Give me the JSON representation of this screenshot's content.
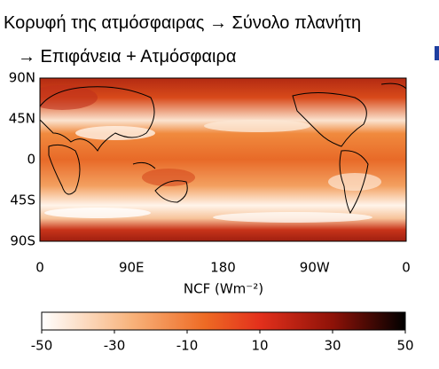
{
  "title": [
    "Κορυφή της ατμόσφαιρας → Σύνολο πλανήτη",
    "→  Επιφάνεια + Ατμόσφαιρα"
  ],
  "map": {
    "lat_labels": [
      "90N",
      "45N",
      "0",
      "45S",
      "90S"
    ],
    "lon_labels": [
      "0",
      "90E",
      "180",
      "90W",
      "0"
    ],
    "axis_label": "NCF (Wm⁻²)"
  },
  "colorbar": {
    "range": [
      -50,
      50
    ],
    "ticks": [
      -50,
      -30,
      -10,
      10,
      30,
      50
    ]
  }
}
